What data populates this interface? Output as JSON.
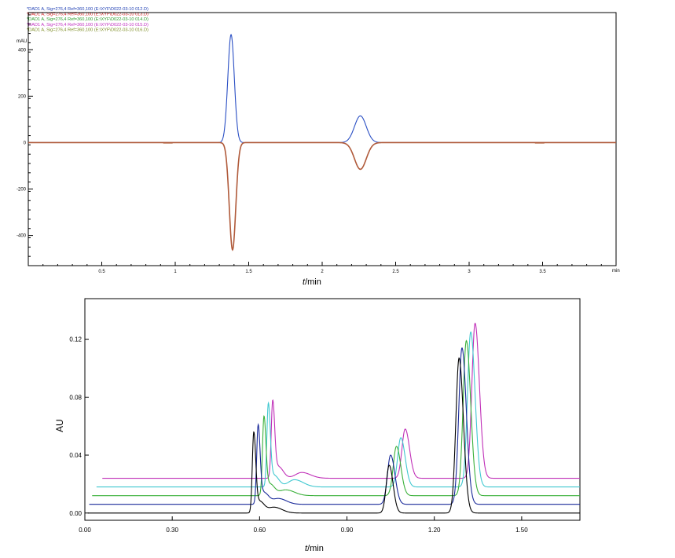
{
  "chart_data": [
    {
      "type": "line",
      "xlabel_italic": "t",
      "xlabel_rest": "/min",
      "ylabel": "mAU",
      "x_unit_label": "min",
      "xlim": [
        0,
        4
      ],
      "ylim": [
        -530,
        560
      ],
      "x_ticks": [
        "0.5",
        "1",
        "1.5",
        "2",
        "2.5",
        "3",
        "3.5"
      ],
      "x_tick_values": [
        0.5,
        1,
        1.5,
        2,
        2.5,
        3,
        3.5
      ],
      "y_ticks": [
        "400",
        "200",
        "0",
        "-200",
        "-400"
      ],
      "y_tick_values": [
        400,
        200,
        0,
        -200,
        -400
      ],
      "legend": [
        {
          "text": "DAD1 A, Sig=276,4 Ref=360,100 (E:\\XYF\\D022-03-10  012.D)",
          "color": "#1f3fb4"
        },
        {
          "text": "DAD1 A, Sig=276,4 Ref=360,100 (E:\\XYF\\D022-03-10  013.D)",
          "color": "#d42020"
        },
        {
          "text": "DAD1 A, Sig=276,4 Ref=360,100 (E:\\XYF\\D022-03-10  014.D)",
          "color": "#2a9a2a"
        },
        {
          "text": "DAD1 A, Sig=276,4 Ref=360,100 (E:\\XYF\\D022-03-10  015.D)",
          "color": "#c030c0"
        },
        {
          "text": "DAD1 A, Sig=276,4 Ref=360,100 (E:\\XYF\\D022-03-10  016.D)",
          "color": "#7a8a20"
        }
      ],
      "series": [
        {
          "color": "#2a4fc4",
          "peaks": [
            {
              "t": 1.38,
              "h": 465,
              "w": 0.022
            },
            {
              "t": 2.26,
              "h": 115,
              "w": 0.04
            }
          ]
        },
        {
          "color": "#b05a3a",
          "peaks": [
            {
              "t": 1.39,
              "h": -462,
              "w": 0.022
            },
            {
              "t": 2.26,
              "h": -115,
              "w": 0.04
            }
          ]
        }
      ],
      "baseline_blips": [
        0.95,
        3.48
      ]
    },
    {
      "type": "line",
      "xlabel_italic": "t",
      "xlabel_rest": "/min",
      "ylabel": "AU",
      "xlim": [
        0,
        1.7
      ],
      "ylim": [
        -0.005,
        0.148
      ],
      "x_ticks": [
        "0.00",
        "0.30",
        "0.60",
        "0.90",
        "1.20",
        "1.50"
      ],
      "x_tick_values": [
        0.0,
        0.3,
        0.6,
        0.9,
        1.2,
        1.5
      ],
      "y_ticks": [
        "0.00",
        "0.04",
        "0.08",
        "0.12"
      ],
      "y_tick_values": [
        0.0,
        0.04,
        0.08,
        0.12
      ],
      "series": [
        {
          "color": "#000000",
          "start": 0.01,
          "baseline": 0.0,
          "peaks": [
            {
              "t": 0.58,
              "h": 0.054,
              "w": 0.005
            },
            {
              "t": 0.6,
              "h": 0.008,
              "w": 0.012
            },
            {
              "t": 0.65,
              "h": 0.004,
              "w": 0.02
            },
            {
              "t": 1.045,
              "h": 0.033,
              "w": 0.01
            },
            {
              "t": 1.285,
              "h": 0.107,
              "w": 0.011
            }
          ]
        },
        {
          "color": "#1a2a9a",
          "start": 0.015,
          "baseline": 0.006,
          "peaks": [
            {
              "t": 0.595,
              "h": 0.053,
              "w": 0.005
            },
            {
              "t": 0.615,
              "h": 0.008,
              "w": 0.012
            },
            {
              "t": 0.665,
              "h": 0.004,
              "w": 0.02
            },
            {
              "t": 1.05,
              "h": 0.034,
              "w": 0.011
            },
            {
              "t": 1.295,
              "h": 0.108,
              "w": 0.011
            }
          ]
        },
        {
          "color": "#3ab03a",
          "start": 0.025,
          "baseline": 0.012,
          "peaks": [
            {
              "t": 0.615,
              "h": 0.053,
              "w": 0.005
            },
            {
              "t": 0.635,
              "h": 0.008,
              "w": 0.012
            },
            {
              "t": 0.69,
              "h": 0.004,
              "w": 0.022
            },
            {
              "t": 1.07,
              "h": 0.034,
              "w": 0.011
            },
            {
              "t": 1.31,
              "h": 0.107,
              "w": 0.011
            }
          ]
        },
        {
          "color": "#40c8d0",
          "start": 0.04,
          "baseline": 0.018,
          "peaks": [
            {
              "t": 0.63,
              "h": 0.056,
              "w": 0.005
            },
            {
              "t": 0.65,
              "h": 0.008,
              "w": 0.012
            },
            {
              "t": 0.72,
              "h": 0.005,
              "w": 0.022
            },
            {
              "t": 1.085,
              "h": 0.034,
              "w": 0.011
            },
            {
              "t": 1.325,
              "h": 0.107,
              "w": 0.011
            }
          ]
        },
        {
          "color": "#c030b8",
          "start": 0.06,
          "baseline": 0.024,
          "peaks": [
            {
              "t": 0.645,
              "h": 0.052,
              "w": 0.005
            },
            {
              "t": 0.665,
              "h": 0.008,
              "w": 0.012
            },
            {
              "t": 0.745,
              "h": 0.004,
              "w": 0.022
            },
            {
              "t": 1.1,
              "h": 0.034,
              "w": 0.011
            },
            {
              "t": 1.34,
              "h": 0.107,
              "w": 0.011
            }
          ]
        }
      ]
    }
  ]
}
